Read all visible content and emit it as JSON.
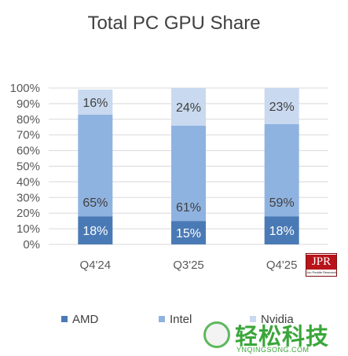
{
  "chart_data": {
    "type": "bar",
    "stacked": true,
    "title": "Total PC GPU Share",
    "xlabel": "",
    "ylabel": "",
    "categories": [
      "Q4'24",
      "Q3'25",
      "Q4'25"
    ],
    "ylim": [
      0,
      100
    ],
    "yticks": [
      "0%",
      "10%",
      "20%",
      "30%",
      "40%",
      "50%",
      "60%",
      "70%",
      "80%",
      "90%",
      "100%"
    ],
    "series": [
      {
        "name": "AMD",
        "values": [
          18,
          15,
          18
        ],
        "labels": [
          "18%",
          "15%",
          "18%"
        ],
        "color": "#4a7ab5",
        "label_color": "#ffffff"
      },
      {
        "name": "Intel",
        "values": [
          65,
          61,
          59
        ],
        "labels": [
          "65%",
          "61%",
          "59%"
        ],
        "color": "#8fb3e0",
        "label_color": "#404040"
      },
      {
        "name": "Nvidia",
        "values": [
          16,
          24,
          23
        ],
        "labels": [
          "16%",
          "24%",
          "23%"
        ],
        "color": "#c9d9ef",
        "label_color": "#404040"
      }
    ],
    "grid": true,
    "legend_position": "bottom"
  },
  "logo": {
    "letters": "JPR",
    "subtitle": "Jon Peddie Research"
  },
  "watermark": {
    "text": "轻松科技",
    "url": "YNQINGSONG.COM"
  }
}
